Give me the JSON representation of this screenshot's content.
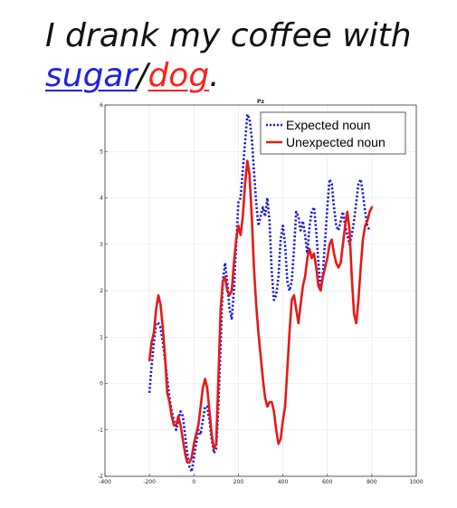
{
  "heading": {
    "line1": "I drank my coffee with",
    "word_blue": "sugar",
    "slash": "/",
    "word_red": "dog",
    "period": ".",
    "colors": {
      "text": "#111111",
      "blue": "#1f20e6",
      "red": "#ff1f1f"
    }
  },
  "chart_data": {
    "type": "line",
    "title": "Pz",
    "xlabel": "",
    "ylabel": "",
    "xlim": [
      -400,
      1000
    ],
    "ylim": [
      -2,
      6
    ],
    "xticks": [
      -400,
      -200,
      0,
      200,
      400,
      600,
      800,
      1000
    ],
    "yticks": [
      -2,
      -1,
      0,
      1,
      2,
      3,
      4,
      5,
      6
    ],
    "grid": true,
    "legend_position": "top-right",
    "series": [
      {
        "name": "Expected noun",
        "style": "dotted",
        "color": "#1a1ad6",
        "x": [
          -200,
          -190,
          -180,
          -170,
          -160,
          -150,
          -140,
          -130,
          -120,
          -110,
          -100,
          -90,
          -80,
          -70,
          -60,
          -50,
          -40,
          -30,
          -20,
          -10,
          0,
          10,
          20,
          30,
          40,
          50,
          60,
          70,
          80,
          90,
          100,
          110,
          120,
          130,
          140,
          150,
          160,
          170,
          180,
          190,
          200,
          210,
          220,
          230,
          240,
          250,
          260,
          270,
          280,
          290,
          300,
          310,
          320,
          330,
          340,
          350,
          360,
          370,
          380,
          390,
          400,
          410,
          420,
          430,
          440,
          450,
          460,
          470,
          480,
          490,
          500,
          510,
          520,
          530,
          540,
          550,
          560,
          570,
          580,
          590,
          600,
          610,
          620,
          630,
          640,
          650,
          660,
          670,
          680,
          690,
          700,
          710,
          720,
          730,
          740,
          750,
          760,
          770,
          780,
          790
        ],
        "values": [
          -0.2,
          0.4,
          0.9,
          1.3,
          1.3,
          1.2,
          0.9,
          0.5,
          0.1,
          -0.3,
          -0.6,
          -0.8,
          -1.0,
          -0.8,
          -0.6,
          -0.7,
          -1.1,
          -1.5,
          -1.8,
          -1.9,
          -1.6,
          -1.3,
          -1.0,
          -1.1,
          -0.8,
          -0.5,
          -0.5,
          -0.8,
          -1.2,
          -1.5,
          -1.4,
          -0.5,
          0.8,
          2.2,
          2.6,
          2.2,
          1.6,
          1.4,
          2.0,
          3.0,
          3.9,
          4.0,
          4.6,
          5.2,
          5.8,
          5.7,
          5.3,
          4.6,
          3.9,
          3.4,
          3.6,
          3.8,
          3.6,
          4.0,
          3.5,
          2.4,
          1.8,
          1.9,
          2.3,
          3.1,
          3.4,
          3.0,
          2.2,
          2.0,
          2.2,
          2.9,
          3.7,
          3.6,
          3.3,
          3.5,
          3.2,
          2.8,
          3.4,
          3.7,
          3.8,
          3.3,
          2.6,
          2.0,
          2.4,
          3.1,
          3.8,
          4.4,
          4.3,
          3.8,
          3.4,
          3.3,
          3.5,
          3.7,
          3.4,
          3.2,
          3.0,
          3.2,
          3.5,
          3.9,
          4.3,
          4.4,
          4.1,
          3.7,
          3.4,
          3.3
        ]
      },
      {
        "name": "Unexpected noun",
        "style": "solid",
        "color": "#e61919",
        "x": [
          -200,
          -190,
          -180,
          -170,
          -160,
          -150,
          -140,
          -130,
          -120,
          -110,
          -100,
          -90,
          -80,
          -70,
          -60,
          -50,
          -40,
          -30,
          -20,
          -10,
          0,
          10,
          20,
          30,
          40,
          50,
          60,
          70,
          80,
          90,
          100,
          110,
          120,
          130,
          140,
          150,
          160,
          170,
          180,
          190,
          200,
          210,
          220,
          230,
          240,
          250,
          260,
          270,
          280,
          290,
          300,
          310,
          320,
          330,
          340,
          350,
          360,
          370,
          380,
          390,
          400,
          410,
          420,
          430,
          440,
          450,
          460,
          470,
          480,
          490,
          500,
          510,
          520,
          530,
          540,
          550,
          560,
          570,
          580,
          590,
          600,
          610,
          620,
          630,
          640,
          650,
          660,
          670,
          680,
          690,
          700,
          710,
          720,
          730,
          740,
          750,
          760,
          770,
          780,
          790,
          800
        ],
        "values": [
          0.5,
          0.9,
          1.1,
          1.6,
          1.9,
          1.7,
          1.2,
          0.6,
          -0.2,
          -0.4,
          -0.7,
          -0.9,
          -0.9,
          -0.7,
          -0.9,
          -1.2,
          -1.5,
          -1.7,
          -1.7,
          -1.6,
          -1.3,
          -1.1,
          -0.9,
          -0.5,
          -0.1,
          0.1,
          -0.1,
          -0.6,
          -1.1,
          -1.4,
          -1.3,
          0.1,
          1.6,
          2.2,
          2.3,
          2.0,
          1.9,
          2.0,
          2.6,
          3.1,
          3.4,
          3.2,
          3.6,
          4.3,
          4.8,
          4.5,
          3.6,
          2.5,
          1.7,
          1.1,
          0.6,
          0.1,
          -0.3,
          -0.5,
          -0.4,
          -0.4,
          -0.6,
          -1.0,
          -1.3,
          -1.2,
          -0.8,
          -0.5,
          0.3,
          1.1,
          1.8,
          1.9,
          1.6,
          1.3,
          1.7,
          2.1,
          2.3,
          2.7,
          2.9,
          2.7,
          2.8,
          2.5,
          2.1,
          2.0,
          2.3,
          2.5,
          2.7,
          3.0,
          3.1,
          2.8,
          2.6,
          2.5,
          2.6,
          3.0,
          3.4,
          3.7,
          3.3,
          2.3,
          1.5,
          1.3,
          1.8,
          2.5,
          3.1,
          3.4,
          3.5,
          3.7,
          3.8
        ]
      }
    ],
    "colors": {
      "axis": "#333333",
      "grid": "#e6e6e6",
      "background": "#ffffff"
    }
  }
}
